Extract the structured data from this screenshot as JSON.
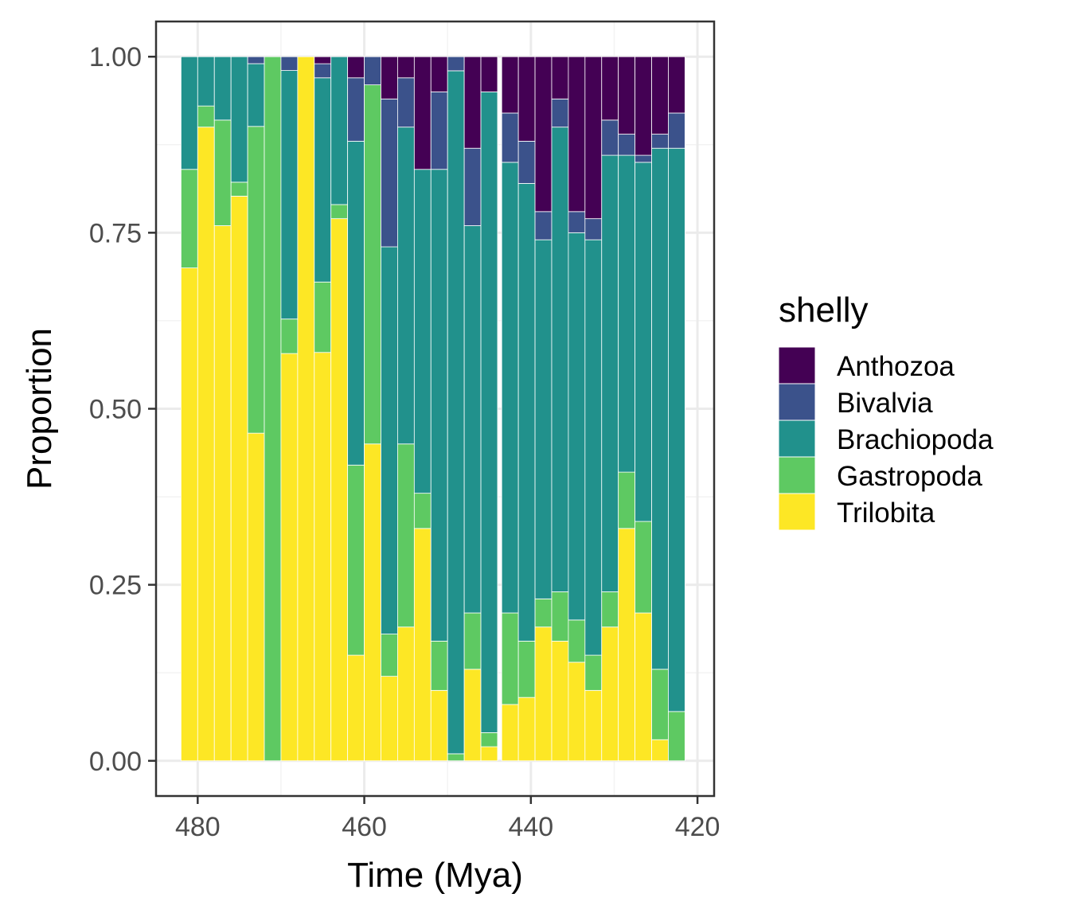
{
  "chart_data": {
    "type": "bar",
    "stacked": true,
    "position": "fill",
    "xlabel": "Time (Mya)",
    "ylabel": "Proportion",
    "xlim": [
      485,
      418
    ],
    "x_reversed": true,
    "ylim": [
      -0.05,
      1.05
    ],
    "x_ticks": [
      480,
      460,
      440,
      420
    ],
    "y_ticks": [
      0,
      0.25,
      0.5,
      0.75,
      1
    ],
    "x_tick_labels": [
      "480",
      "460",
      "440",
      "420"
    ],
    "y_tick_labels": [
      "0.00",
      "0.25",
      "0.50",
      "0.75",
      "1.00"
    ],
    "grid": true,
    "legend_position": "right",
    "legend_title": "shelly",
    "bar_width": 2,
    "x": [
      481,
      479,
      477,
      475,
      473,
      471,
      469,
      467,
      465,
      463,
      461,
      459,
      457,
      455,
      453,
      451,
      449,
      447,
      445,
      442.5,
      440.5,
      438.5,
      436.5,
      434.5,
      432.5,
      430.5,
      428.5,
      426.5,
      424.5,
      422.5
    ],
    "series": [
      {
        "name": "Trilobita",
        "color": "#FDE725",
        "values": [
          0.7,
          0.9,
          0.76,
          0.81,
          0.47,
          0.0,
          0.59,
          1.0,
          0.58,
          0.77,
          0.15,
          0.45,
          0.12,
          0.19,
          0.33,
          0.1,
          0.0,
          0.13,
          0.02,
          0.08,
          0.09,
          0.19,
          0.17,
          0.14,
          0.1,
          0.19,
          0.33,
          0.21,
          0.03,
          0.0
        ]
      },
      {
        "name": "Gastropoda",
        "color": "#5EC962",
        "values": [
          0.14,
          0.03,
          0.15,
          0.02,
          0.44,
          1.0,
          0.05,
          0.0,
          0.1,
          0.02,
          0.27,
          0.51,
          0.06,
          0.26,
          0.05,
          0.07,
          0.01,
          0.08,
          0.02,
          0.13,
          0.08,
          0.04,
          0.07,
          0.06,
          0.05,
          0.05,
          0.08,
          0.13,
          0.1,
          0.07
        ]
      },
      {
        "name": "Brachiopoda",
        "color": "#21918C",
        "values": [
          0.16,
          0.07,
          0.09,
          0.18,
          0.09,
          0.0,
          0.36,
          0.0,
          0.29,
          0.21,
          0.46,
          0.0,
          0.55,
          0.45,
          0.46,
          0.67,
          0.97,
          0.55,
          0.91,
          0.64,
          0.65,
          0.51,
          0.66,
          0.55,
          0.59,
          0.62,
          0.45,
          0.51,
          0.74,
          0.8
        ]
      },
      {
        "name": "Bivalvia",
        "color": "#3B528B",
        "values": [
          0.0,
          0.0,
          0.0,
          0.0,
          0.01,
          0.0,
          0.02,
          0.0,
          0.02,
          0.0,
          0.09,
          0.04,
          0.21,
          0.07,
          0.0,
          0.11,
          0.02,
          0.11,
          0.0,
          0.07,
          0.06,
          0.04,
          0.04,
          0.03,
          0.03,
          0.05,
          0.03,
          0.01,
          0.02,
          0.05
        ]
      },
      {
        "name": "Anthozoa",
        "color": "#440154",
        "values": [
          0.0,
          0.0,
          0.0,
          0.0,
          0.0,
          0.0,
          0.0,
          0.0,
          0.01,
          0.0,
          0.03,
          0.0,
          0.06,
          0.03,
          0.16,
          0.05,
          0.0,
          0.13,
          0.05,
          0.08,
          0.12,
          0.22,
          0.06,
          0.22,
          0.23,
          0.09,
          0.11,
          0.14,
          0.11,
          0.08
        ]
      }
    ],
    "legend_order": [
      "Anthozoa",
      "Bivalvia",
      "Brachiopoda",
      "Gastropoda",
      "Trilobita"
    ]
  },
  "style": {
    "panel_border": "#333333",
    "grid_major": "#ebebeb",
    "grid_minor": "#f3f3f3",
    "bar_outline": "#ffffff"
  }
}
